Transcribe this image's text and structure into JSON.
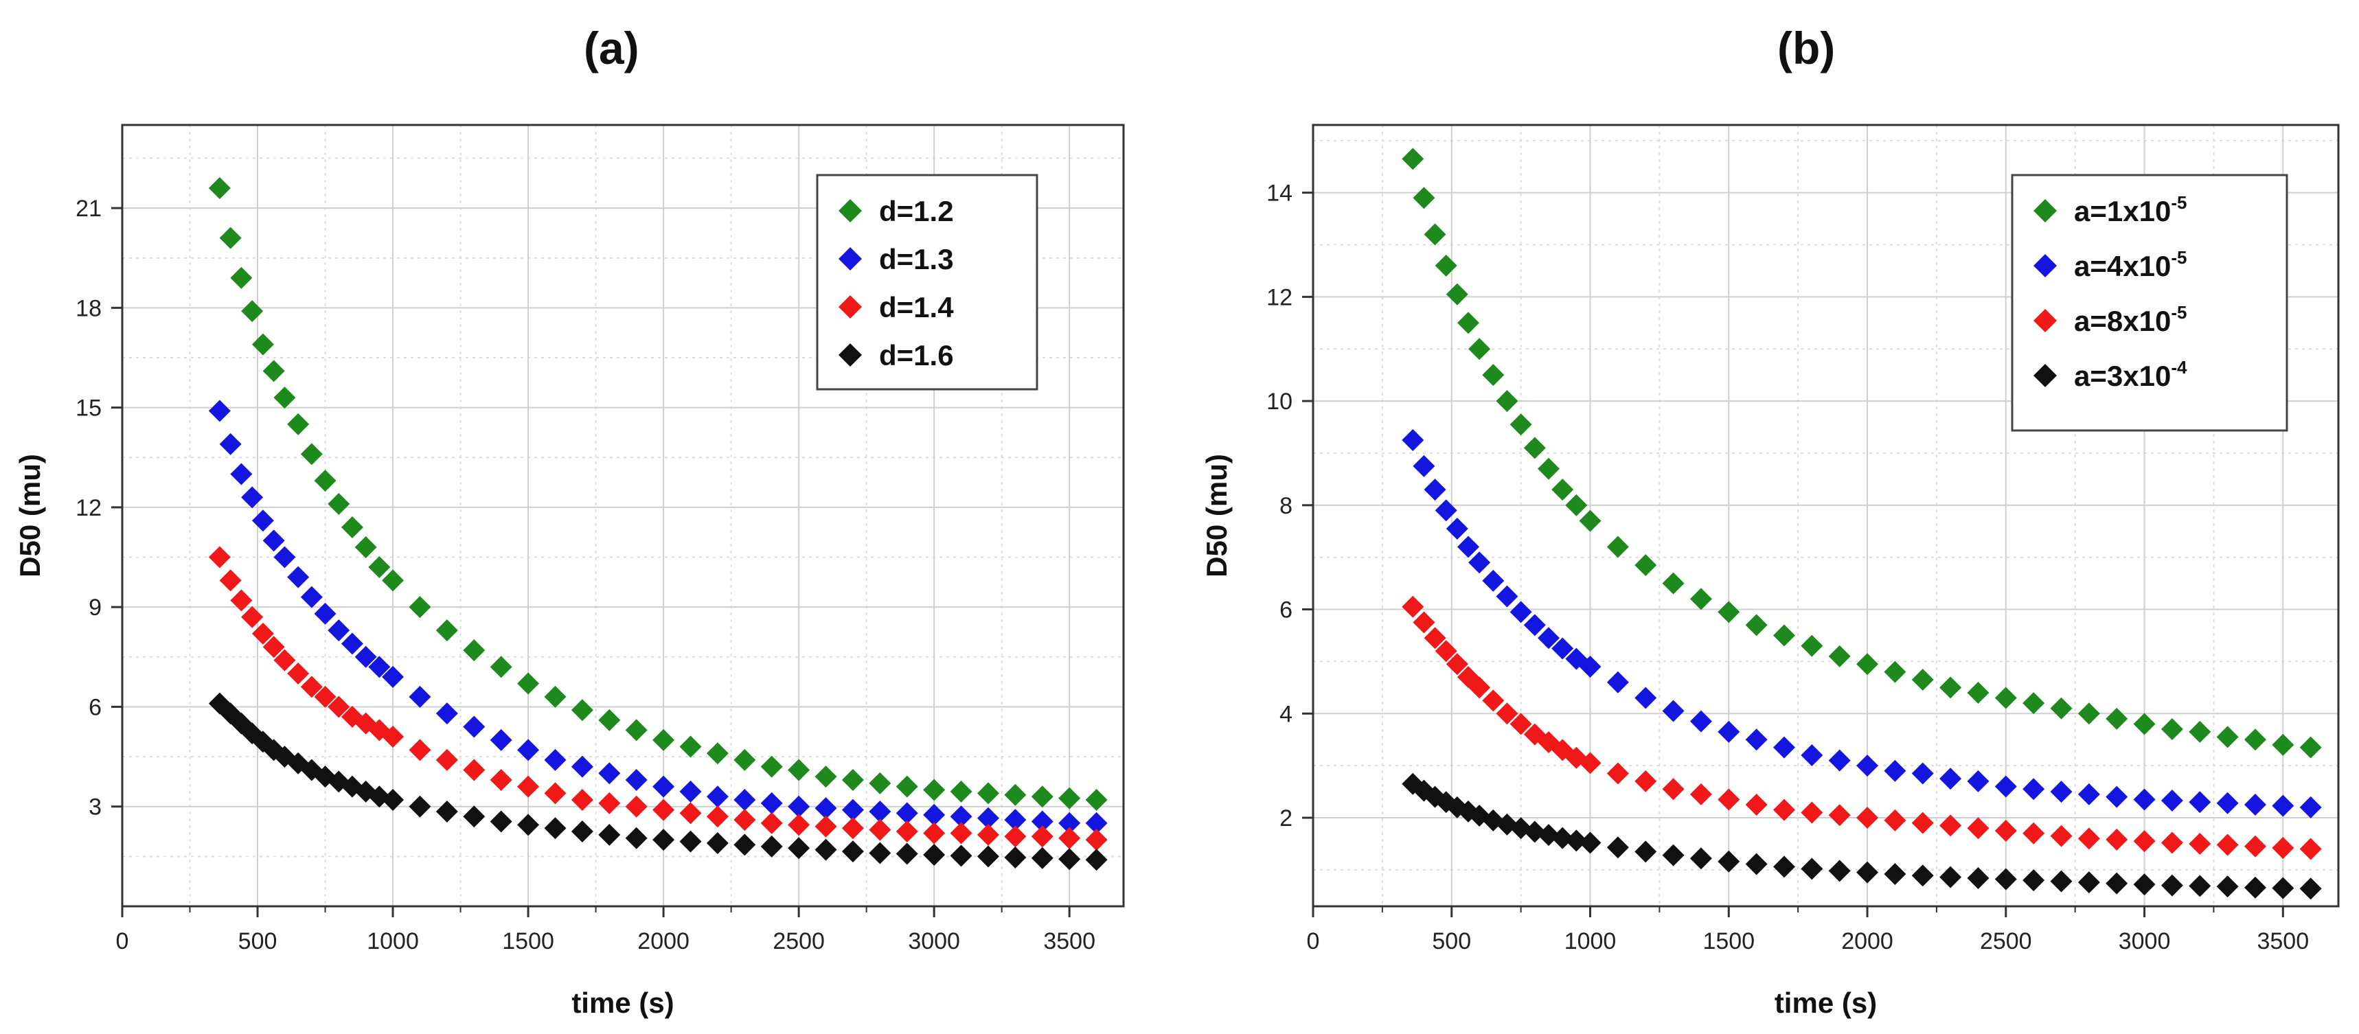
{
  "panels": [
    {
      "label": "(a)",
      "chart_data": {
        "type": "scatter",
        "xlabel": "time (s)",
        "ylabel": "D50 (mu)",
        "xlim": [
          0,
          3700
        ],
        "ylim": [
          0,
          23.5
        ],
        "xticks": [
          0,
          500,
          1000,
          1500,
          2000,
          2500,
          3000,
          3500
        ],
        "yticks": [
          3,
          6,
          9,
          12,
          15,
          18,
          21
        ],
        "grid": true,
        "legend_position": "top-right",
        "x": [
          360,
          400,
          440,
          480,
          520,
          560,
          600,
          650,
          700,
          750,
          800,
          850,
          900,
          950,
          1000,
          1100,
          1200,
          1300,
          1400,
          1500,
          1600,
          1700,
          1800,
          1900,
          2000,
          2100,
          2200,
          2300,
          2400,
          2500,
          2600,
          2700,
          2800,
          2900,
          3000,
          3100,
          3200,
          3300,
          3400,
          3500,
          3600
        ],
        "series": [
          {
            "name": "d=1.2",
            "color": "#1e8a1e",
            "values": [
              21.6,
              20.1,
              18.9,
              17.9,
              16.9,
              16.1,
              15.3,
              14.5,
              13.6,
              12.8,
              12.1,
              11.4,
              10.8,
              10.2,
              9.8,
              9.0,
              8.3,
              7.7,
              7.2,
              6.7,
              6.3,
              5.9,
              5.6,
              5.3,
              5.0,
              4.8,
              4.6,
              4.4,
              4.2,
              4.1,
              3.9,
              3.8,
              3.7,
              3.6,
              3.5,
              3.45,
              3.4,
              3.35,
              3.3,
              3.25,
              3.2
            ]
          },
          {
            "name": "d=1.3",
            "color": "#1515e0",
            "values": [
              14.9,
              13.9,
              13.0,
              12.3,
              11.6,
              11.0,
              10.5,
              9.9,
              9.3,
              8.8,
              8.3,
              7.9,
              7.5,
              7.2,
              6.9,
              6.3,
              5.8,
              5.4,
              5.0,
              4.7,
              4.4,
              4.2,
              4.0,
              3.8,
              3.6,
              3.45,
              3.3,
              3.2,
              3.1,
              3.0,
              2.95,
              2.9,
              2.85,
              2.8,
              2.75,
              2.7,
              2.65,
              2.6,
              2.55,
              2.5,
              2.5
            ]
          },
          {
            "name": "d=1.4",
            "color": "#f01818",
            "values": [
              10.5,
              9.8,
              9.2,
              8.7,
              8.2,
              7.8,
              7.4,
              7.0,
              6.6,
              6.3,
              6.0,
              5.7,
              5.5,
              5.3,
              5.1,
              4.7,
              4.4,
              4.1,
              3.8,
              3.6,
              3.4,
              3.2,
              3.1,
              3.0,
              2.9,
              2.8,
              2.7,
              2.6,
              2.5,
              2.45,
              2.4,
              2.35,
              2.3,
              2.25,
              2.2,
              2.2,
              2.15,
              2.1,
              2.1,
              2.05,
              2.0
            ]
          },
          {
            "name": "d=1.6",
            "color": "#111111",
            "values": [
              6.1,
              5.8,
              5.5,
              5.2,
              4.95,
              4.7,
              4.5,
              4.3,
              4.1,
              3.9,
              3.75,
              3.6,
              3.45,
              3.3,
              3.2,
              3.0,
              2.85,
              2.7,
              2.55,
              2.45,
              2.35,
              2.25,
              2.15,
              2.05,
              2.0,
              1.95,
              1.9,
              1.85,
              1.8,
              1.75,
              1.7,
              1.65,
              1.6,
              1.58,
              1.55,
              1.52,
              1.5,
              1.47,
              1.45,
              1.42,
              1.4
            ]
          }
        ]
      }
    },
    {
      "label": "(b)",
      "chart_data": {
        "type": "scatter",
        "xlabel": "time (s)",
        "ylabel": "D50 (mu)",
        "xlim": [
          0,
          3700
        ],
        "ylim": [
          0.3,
          15.3
        ],
        "xticks": [
          0,
          500,
          1000,
          1500,
          2000,
          2500,
          3000,
          3500
        ],
        "yticks": [
          2,
          4,
          6,
          8,
          10,
          12,
          14
        ],
        "grid": true,
        "legend_position": "top-right",
        "x": [
          360,
          400,
          440,
          480,
          520,
          560,
          600,
          650,
          700,
          750,
          800,
          850,
          900,
          950,
          1000,
          1100,
          1200,
          1300,
          1400,
          1500,
          1600,
          1700,
          1800,
          1900,
          2000,
          2100,
          2200,
          2300,
          2400,
          2500,
          2600,
          2700,
          2800,
          2900,
          3000,
          3100,
          3200,
          3300,
          3400,
          3500,
          3600
        ],
        "series": [
          {
            "name": "a=1x10",
            "exponent": "-5",
            "color": "#1e8a1e",
            "values": [
              14.65,
              13.9,
              13.2,
              12.6,
              12.05,
              11.5,
              11.0,
              10.5,
              10.0,
              9.55,
              9.1,
              8.7,
              8.3,
              8.0,
              7.7,
              7.2,
              6.85,
              6.5,
              6.2,
              5.95,
              5.7,
              5.5,
              5.3,
              5.1,
              4.95,
              4.8,
              4.65,
              4.5,
              4.4,
              4.3,
              4.2,
              4.1,
              4.0,
              3.9,
              3.8,
              3.7,
              3.65,
              3.55,
              3.5,
              3.4,
              3.35
            ]
          },
          {
            "name": "a=4x10",
            "exponent": "-5",
            "color": "#1515e0",
            "values": [
              9.25,
              8.75,
              8.3,
              7.9,
              7.55,
              7.2,
              6.9,
              6.55,
              6.25,
              5.95,
              5.7,
              5.45,
              5.25,
              5.05,
              4.9,
              4.6,
              4.3,
              4.05,
              3.85,
              3.65,
              3.5,
              3.35,
              3.2,
              3.1,
              3.0,
              2.9,
              2.85,
              2.75,
              2.7,
              2.6,
              2.55,
              2.5,
              2.45,
              2.4,
              2.35,
              2.33,
              2.3,
              2.28,
              2.25,
              2.23,
              2.2
            ]
          },
          {
            "name": "a=8x10",
            "exponent": "-5",
            "color": "#f01818",
            "values": [
              6.05,
              5.75,
              5.45,
              5.2,
              4.95,
              4.7,
              4.5,
              4.25,
              4.0,
              3.8,
              3.6,
              3.45,
              3.3,
              3.15,
              3.05,
              2.85,
              2.7,
              2.55,
              2.45,
              2.35,
              2.25,
              2.15,
              2.1,
              2.05,
              2.0,
              1.95,
              1.9,
              1.85,
              1.8,
              1.75,
              1.7,
              1.65,
              1.6,
              1.58,
              1.55,
              1.52,
              1.5,
              1.48,
              1.45,
              1.42,
              1.4
            ]
          },
          {
            "name": "a=3x10",
            "exponent": "-4",
            "color": "#111111",
            "values": [
              2.65,
              2.52,
              2.4,
              2.3,
              2.2,
              2.12,
              2.04,
              1.95,
              1.87,
              1.8,
              1.73,
              1.67,
              1.61,
              1.56,
              1.52,
              1.43,
              1.35,
              1.28,
              1.22,
              1.16,
              1.11,
              1.06,
              1.02,
              0.98,
              0.95,
              0.92,
              0.89,
              0.86,
              0.84,
              0.82,
              0.8,
              0.78,
              0.76,
              0.74,
              0.72,
              0.7,
              0.69,
              0.68,
              0.66,
              0.65,
              0.64
            ]
          }
        ]
      }
    }
  ]
}
